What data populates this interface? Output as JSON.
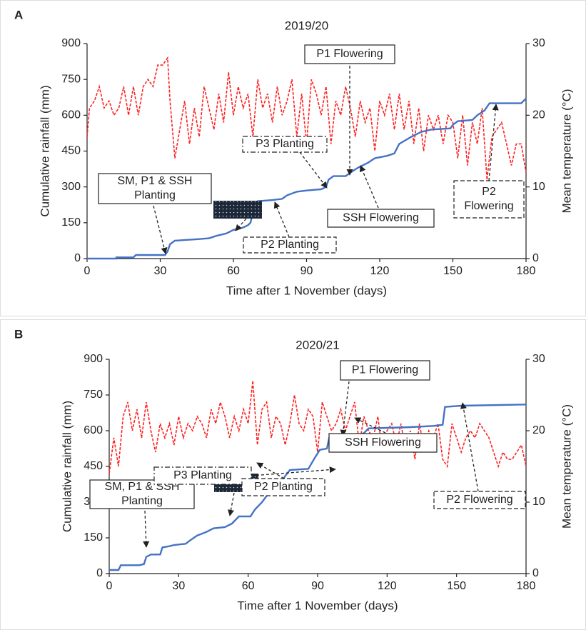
{
  "chart_data": [
    {
      "type": "line",
      "panel_label": "A",
      "title": "2019/20",
      "x_label": "Time after 1 November (days)",
      "y_label": "Cumulative rainfall (mm)",
      "y2_label": "Mean temperature (°C)",
      "xlim": [
        0,
        180
      ],
      "xticks": [
        0,
        30,
        60,
        90,
        120,
        150,
        180
      ],
      "ylim": [
        0,
        900
      ],
      "yticks": [
        0,
        150,
        300,
        450,
        600,
        750,
        900
      ],
      "y2lim": [
        0,
        30
      ],
      "y2ticks": [
        0,
        10,
        20,
        30
      ],
      "series": [
        {
          "color": "#4472c4",
          "x": [
            0,
            12,
            12,
            19,
            20,
            32,
            33,
            34,
            36,
            44,
            50,
            53,
            57,
            60,
            62,
            64,
            66,
            67,
            68,
            70,
            76,
            80,
            82,
            86,
            90,
            96,
            98,
            99,
            101,
            106,
            108,
            111,
            115,
            118,
            123,
            126,
            128,
            133,
            137,
            141,
            149,
            150,
            152,
            158,
            160,
            163,
            165,
            178,
            180
          ],
          "values": [
            0,
            0,
            5,
            5,
            15,
            15,
            30,
            60,
            75,
            80,
            85,
            95,
            105,
            120,
            125,
            130,
            140,
            150,
            190,
            240,
            245,
            250,
            265,
            280,
            285,
            290,
            300,
            330,
            345,
            345,
            360,
            380,
            400,
            420,
            430,
            440,
            480,
            510,
            530,
            540,
            545,
            560,
            575,
            580,
            600,
            620,
            650,
            650,
            670
          ]
        },
        {
          "color": "#ff2020",
          "axis": "y2",
          "x": [
            0,
            1,
            3,
            5,
            7,
            9,
            11,
            13,
            15,
            17,
            19,
            21,
            23,
            25,
            27,
            29,
            31,
            33,
            34,
            36,
            38,
            40,
            42,
            44,
            46,
            48,
            50,
            52,
            54,
            56,
            58,
            60,
            62,
            64,
            66,
            68,
            70,
            72,
            74,
            76,
            78,
            80,
            82,
            84,
            86,
            88,
            90,
            92,
            94,
            96,
            98,
            100,
            102,
            104,
            106,
            108,
            110,
            112,
            114,
            116,
            118,
            120,
            122,
            124,
            126,
            128,
            130,
            132,
            134,
            136,
            138,
            140,
            142,
            144,
            146,
            148,
            150,
            152,
            154,
            156,
            158,
            160,
            162,
            164,
            166,
            168,
            170,
            172,
            174,
            176,
            178,
            180
          ],
          "values": [
            17,
            21,
            22,
            24,
            21,
            22,
            20,
            21,
            24,
            20,
            24,
            20,
            24,
            25,
            24,
            27,
            27,
            28,
            22,
            14,
            18,
            22,
            16,
            21,
            17,
            24,
            21,
            18,
            23,
            19,
            26,
            20,
            24,
            21,
            23,
            17,
            25,
            21,
            23,
            19,
            24,
            20,
            22,
            25,
            17,
            23,
            16,
            25,
            23,
            20,
            24,
            16,
            22,
            20,
            24,
            21,
            17,
            22,
            19,
            21,
            15,
            22,
            20,
            23,
            18,
            23,
            18,
            22,
            16,
            21,
            15,
            20,
            18,
            20,
            16,
            20,
            19,
            14,
            20,
            13,
            19,
            16,
            21,
            11,
            17,
            18,
            19,
            16,
            13,
            16,
            16,
            12
          ]
        }
      ],
      "annotations": [
        {
          "lines": [
            "SM, P1 & SSH",
            "Planting"
          ]
        },
        {
          "lines": [
            "P1 Flowering"
          ]
        },
        {
          "lines": [
            "P3 Planting"
          ]
        },
        {
          "lines": [
            "SSH Flowering"
          ]
        },
        {
          "lines": [
            "P2 Planting"
          ]
        },
        {
          "lines": [
            "P2",
            "Flowering"
          ]
        }
      ]
    },
    {
      "type": "line",
      "panel_label": "B",
      "title": "2020/21",
      "x_label": "Time after 1 November (days)",
      "y_label": "Cumulative rainfall (mm)",
      "y2_label": "Mean temperature (°C)",
      "xlim": [
        0,
        180
      ],
      "xticks": [
        0,
        30,
        60,
        90,
        120,
        150,
        180
      ],
      "ylim": [
        0,
        900
      ],
      "yticks": [
        0,
        150,
        300,
        450,
        600,
        750,
        900
      ],
      "y2lim": [
        0,
        30
      ],
      "y2ticks": [
        0,
        10,
        20,
        30
      ],
      "series": [
        {
          "color": "#4472c4",
          "x": [
            0,
            4,
            5,
            13,
            15,
            16,
            18,
            22,
            23,
            26,
            28,
            33,
            35,
            38,
            42,
            45,
            50,
            53,
            56,
            61,
            63,
            66,
            69,
            72,
            74,
            76,
            78,
            86,
            89,
            91,
            94,
            95,
            106,
            110,
            112,
            120,
            130,
            140,
            144,
            145,
            152,
            180
          ],
          "values": [
            15,
            15,
            35,
            35,
            40,
            70,
            80,
            80,
            110,
            115,
            120,
            125,
            140,
            160,
            175,
            190,
            195,
            210,
            240,
            240,
            270,
            300,
            340,
            360,
            380,
            410,
            435,
            440,
            490,
            520,
            525,
            570,
            575,
            590,
            610,
            612,
            615,
            620,
            625,
            700,
            705,
            710
          ]
        },
        {
          "color": "#ff2020",
          "axis": "y2",
          "x": [
            0,
            2,
            4,
            6,
            8,
            10,
            12,
            14,
            16,
            18,
            20,
            22,
            24,
            26,
            28,
            30,
            32,
            34,
            36,
            38,
            40,
            42,
            44,
            46,
            48,
            50,
            52,
            54,
            56,
            58,
            60,
            62,
            64,
            66,
            68,
            70,
            72,
            74,
            76,
            78,
            80,
            82,
            84,
            86,
            88,
            90,
            92,
            94,
            96,
            98,
            100,
            102,
            104,
            106,
            108,
            110,
            112,
            114,
            116,
            118,
            120,
            122,
            124,
            126,
            128,
            130,
            132,
            134,
            136,
            138,
            140,
            142,
            144,
            146,
            148,
            150,
            152,
            154,
            156,
            158,
            160,
            162,
            164,
            166,
            168,
            170,
            172,
            174,
            176,
            178,
            180
          ],
          "values": [
            14,
            19,
            15,
            22,
            24,
            20,
            23,
            19,
            24,
            20,
            17,
            21,
            19,
            21,
            18,
            22,
            19,
            21,
            20,
            22,
            21,
            19,
            23,
            21,
            24,
            22,
            19,
            22,
            20,
            23,
            21,
            27,
            18,
            23,
            24,
            19,
            22,
            21,
            18,
            21,
            25,
            21,
            20,
            23,
            22,
            17,
            24,
            22,
            20,
            21,
            23,
            20,
            22,
            24,
            18,
            22,
            20,
            19,
            22,
            17,
            20,
            21,
            18,
            21,
            17,
            20,
            16,
            21,
            17,
            20,
            19,
            21,
            16,
            15,
            21,
            19,
            17,
            19,
            20,
            19,
            21,
            20,
            19,
            17,
            15,
            17,
            16,
            16,
            17,
            18,
            15
          ]
        }
      ],
      "annotations": [
        {
          "lines": [
            "SM, P1 & SSH",
            "Planting"
          ]
        },
        {
          "lines": [
            "P1 Flowering"
          ]
        },
        {
          "lines": [
            "P3 Planting"
          ]
        },
        {
          "lines": [
            "SSH Flowering"
          ]
        },
        {
          "lines": [
            "P2 Planting"
          ]
        },
        {
          "lines": [
            "P2 Flowering"
          ]
        }
      ]
    }
  ]
}
